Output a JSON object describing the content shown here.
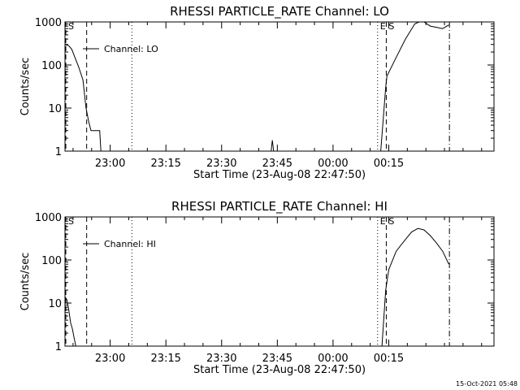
{
  "footer": {
    "timestamp": "15-Oct-2021 05:48"
  },
  "chart_data": [
    {
      "type": "line",
      "title": "RHESSI PARTICLE_RATE Channel: LO",
      "xlabel": "Start Time (23-Aug-08 22:47:50)",
      "ylabel": "Counts/sec",
      "yscale": "log",
      "ylim": [
        1,
        1000
      ],
      "xlim": [
        0,
        6930
      ],
      "x_unit": "seconds from start time",
      "x_ticks": [
        {
          "t": 730,
          "label": "23:00"
        },
        {
          "t": 1630,
          "label": "23:15"
        },
        {
          "t": 2530,
          "label": "23:30"
        },
        {
          "t": 3430,
          "label": "23:45"
        },
        {
          "t": 4330,
          "label": "00:00"
        },
        {
          "t": 5230,
          "label": "00:15"
        }
      ],
      "y_ticks": [
        {
          "v": 1,
          "label": "1"
        },
        {
          "v": 10,
          "label": "10"
        },
        {
          "v": 100,
          "label": "100"
        },
        {
          "v": 1000,
          "label": "1000"
        }
      ],
      "legend": {
        "position": "top-left",
        "label": "Channel: LO"
      },
      "markers": [
        {
          "t": 0,
          "style": "dashed",
          "label": "S"
        },
        {
          "t": 350,
          "style": "dashed",
          "label": ""
        },
        {
          "t": 1080,
          "style": "dotted",
          "label": ""
        },
        {
          "t": 5050,
          "style": "dotted",
          "label": "E"
        },
        {
          "t": 5190,
          "style": "dashed",
          "label": "S"
        },
        {
          "t": 6210,
          "style": "dashdot",
          "label": ""
        }
      ],
      "series": [
        {
          "name": "Channel: LO",
          "segments": [
            [
              [
                0,
                300
              ],
              [
                60,
                280
              ],
              [
                110,
                230
              ],
              [
                160,
                150
              ],
              [
                220,
                90
              ],
              [
                290,
                45
              ],
              [
                340,
                10
              ],
              [
                380,
                5
              ],
              [
                420,
                3
              ],
              [
                500,
                3
              ],
              [
                560,
                3
              ],
              [
                580,
                1
              ]
            ],
            [
              [
                3330,
                1
              ],
              [
                3350,
                1.8
              ],
              [
                3370,
                1
              ]
            ],
            [
              [
                5100,
                1
              ],
              [
                5180,
                30
              ],
              [
                5200,
                55
              ],
              [
                5350,
                150
              ],
              [
                5500,
                400
              ],
              [
                5650,
                900
              ],
              [
                5720,
                1000
              ],
              [
                5800,
                1000
              ],
              [
                5900,
                800
              ],
              [
                6000,
                750
              ],
              [
                6100,
                700
              ],
              [
                6200,
                850
              ]
            ]
          ]
        }
      ]
    },
    {
      "type": "line",
      "title": "RHESSI PARTICLE_RATE Channel: HI",
      "xlabel": "Start Time (23-Aug-08 22:47:50)",
      "ylabel": "Counts/sec",
      "yscale": "log",
      "ylim": [
        1,
        1000
      ],
      "xlim": [
        0,
        6930
      ],
      "x_unit": "seconds from start time",
      "x_ticks": [
        {
          "t": 730,
          "label": "23:00"
        },
        {
          "t": 1630,
          "label": "23:15"
        },
        {
          "t": 2530,
          "label": "23:30"
        },
        {
          "t": 3430,
          "label": "23:45"
        },
        {
          "t": 4330,
          "label": "00:00"
        },
        {
          "t": 5230,
          "label": "00:15"
        }
      ],
      "y_ticks": [
        {
          "v": 1,
          "label": "1"
        },
        {
          "v": 10,
          "label": "10"
        },
        {
          "v": 100,
          "label": "100"
        },
        {
          "v": 1000,
          "label": "1000"
        }
      ],
      "legend": {
        "position": "top-left",
        "label": "Channel: HI"
      },
      "markers": [
        {
          "t": 0,
          "style": "dashed",
          "label": "S"
        },
        {
          "t": 350,
          "style": "dashed",
          "label": ""
        },
        {
          "t": 1080,
          "style": "dotted",
          "label": ""
        },
        {
          "t": 5050,
          "style": "dotted",
          "label": "E"
        },
        {
          "t": 5190,
          "style": "dashed",
          "label": "S"
        },
        {
          "t": 6210,
          "style": "dashdot",
          "label": ""
        }
      ],
      "series": [
        {
          "name": "Channel: HI",
          "segments": [
            [
              [
                0,
                14
              ],
              [
                30,
                12
              ],
              [
                60,
                7
              ],
              [
                90,
                3.5
              ],
              [
                120,
                2.5
              ],
              [
                150,
                1.5
              ],
              [
                175,
                1
              ]
            ],
            [
              [
                5120,
                1
              ],
              [
                5180,
                20
              ],
              [
                5230,
                60
              ],
              [
                5350,
                160
              ],
              [
                5500,
                300
              ],
              [
                5600,
                450
              ],
              [
                5700,
                540
              ],
              [
                5800,
                500
              ],
              [
                5900,
                370
              ],
              [
                6000,
                250
              ],
              [
                6100,
                160
              ],
              [
                6200,
                80
              ]
            ]
          ]
        }
      ]
    }
  ]
}
